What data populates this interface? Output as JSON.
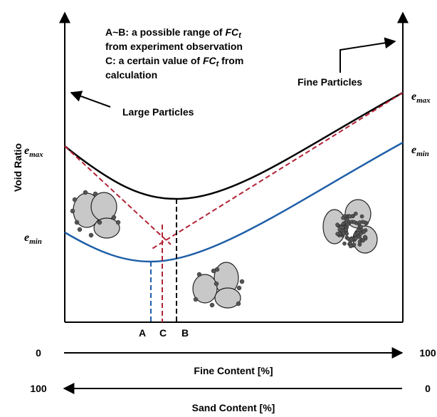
{
  "y_axis_label": "Void Ratio",
  "annotation": {
    "lines": [
      [
        "A~B: a possible range of ",
        "FC",
        "t"
      ],
      [
        "from experiment observation"
      ],
      [
        "C: a certain value of ",
        "FC",
        "t",
        " from"
      ],
      [
        "calculation"
      ]
    ]
  },
  "labels": {
    "fine_particles": "Fine Particles",
    "large_particles": "Large Particles"
  },
  "left_ratios": {
    "e_max": [
      "e",
      "max"
    ],
    "e_min": [
      "e",
      "min"
    ]
  },
  "right_ratios": {
    "e_max": [
      "e",
      "max"
    ],
    "e_min": [
      "e",
      "min"
    ]
  },
  "points": [
    "A",
    "C",
    "B"
  ],
  "fine_axis": {
    "start": "0",
    "end": "100",
    "label": "Fine Content [%]"
  },
  "sand_axis": {
    "start": "100",
    "end": "0",
    "label": "Sand Content [%]"
  }
}
